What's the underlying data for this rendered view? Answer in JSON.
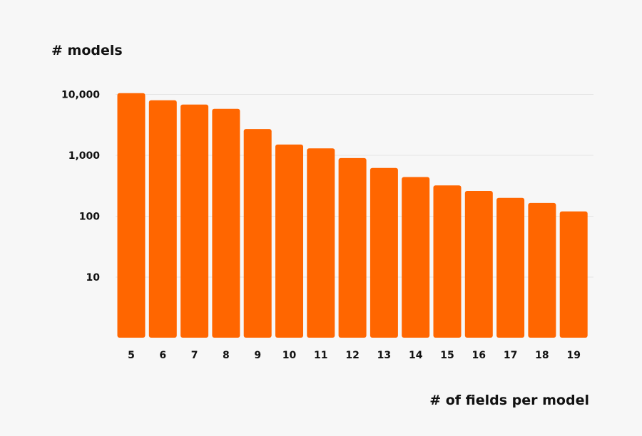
{
  "chart_data": {
    "type": "bar",
    "ylabel": "# models",
    "xlabel": "# of fields per model",
    "y_scale": "log",
    "ylim": [
      1,
      10000
    ],
    "y_ticks": [
      {
        "value": 10,
        "label": "10"
      },
      {
        "value": 100,
        "label": "100"
      },
      {
        "value": 1000,
        "label": "1,000"
      },
      {
        "value": 10000,
        "label": "10,000"
      }
    ],
    "categories": [
      "5",
      "6",
      "7",
      "8",
      "9",
      "10",
      "11",
      "12",
      "13",
      "14",
      "15",
      "16",
      "17",
      "18",
      "19"
    ],
    "values": [
      10500,
      8000,
      6800,
      5800,
      2700,
      1500,
      1300,
      900,
      620,
      440,
      320,
      260,
      200,
      165,
      120
    ],
    "grid": "horizontal",
    "bar_color": "#ff6600",
    "grid_color": "#e4e4e4",
    "background": "#f7f7f7"
  }
}
